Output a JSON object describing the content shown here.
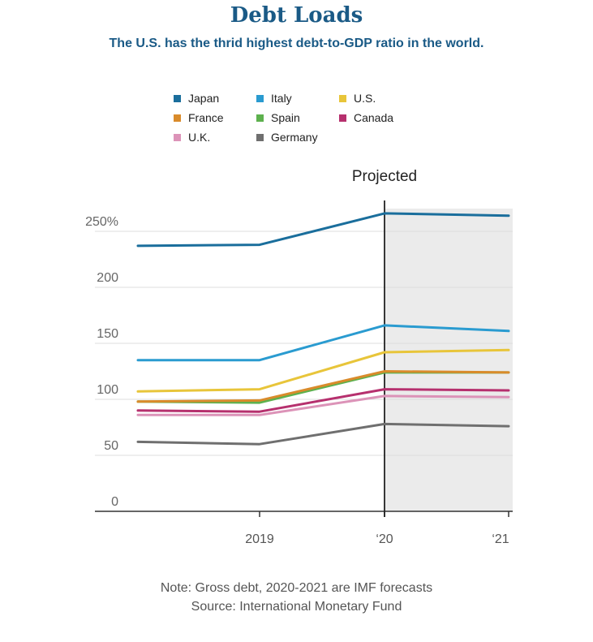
{
  "header": {
    "title": "Debt Loads",
    "subtitle": "The U.S. has the thrid highest debt-to-GDP ratio in the world."
  },
  "footer": {
    "note": "Note: Gross debt, 2020-2021 are IMF forecasts",
    "source": "Source: International Monetary Fund"
  },
  "chart_data": {
    "type": "line",
    "title": "Debt Loads",
    "subtitle": "The U.S. has the thrid highest debt-to-GDP ratio in the world.",
    "x": [
      "",
      "2019",
      "‘20",
      "‘21"
    ],
    "xlabel": "",
    "ylabel": "",
    "ylim": [
      0,
      270
    ],
    "yticks": [
      0,
      50,
      100,
      150,
      200,
      250
    ],
    "ytick_labels": [
      "0",
      "50",
      "100",
      "150",
      "200",
      "250%"
    ],
    "projected_label": "Projected",
    "projected_from_index": 2,
    "grid": true,
    "legend_position": "top",
    "series": [
      {
        "name": "Japan",
        "color": "#1a6e9c",
        "values": [
          237,
          238,
          266,
          264
        ]
      },
      {
        "name": "Italy",
        "color": "#2a9bd0",
        "values": [
          135,
          135,
          166,
          161
        ]
      },
      {
        "name": "U.S.",
        "color": "#e8c53a",
        "values": [
          107,
          109,
          142,
          144
        ]
      },
      {
        "name": "France",
        "color": "#d98b2b",
        "values": [
          98,
          99,
          125,
          124
        ]
      },
      {
        "name": "Spain",
        "color": "#5db14e",
        "values": [
          98,
          97,
          124,
          124
        ]
      },
      {
        "name": "Canada",
        "color": "#b6306e",
        "values": [
          90,
          89,
          109,
          108
        ]
      },
      {
        "name": "U.K.",
        "color": "#dc93b8",
        "values": [
          86,
          86,
          103,
          102
        ]
      },
      {
        "name": "Germany",
        "color": "#6f6f6f",
        "values": [
          62,
          60,
          78,
          76
        ]
      }
    ]
  }
}
